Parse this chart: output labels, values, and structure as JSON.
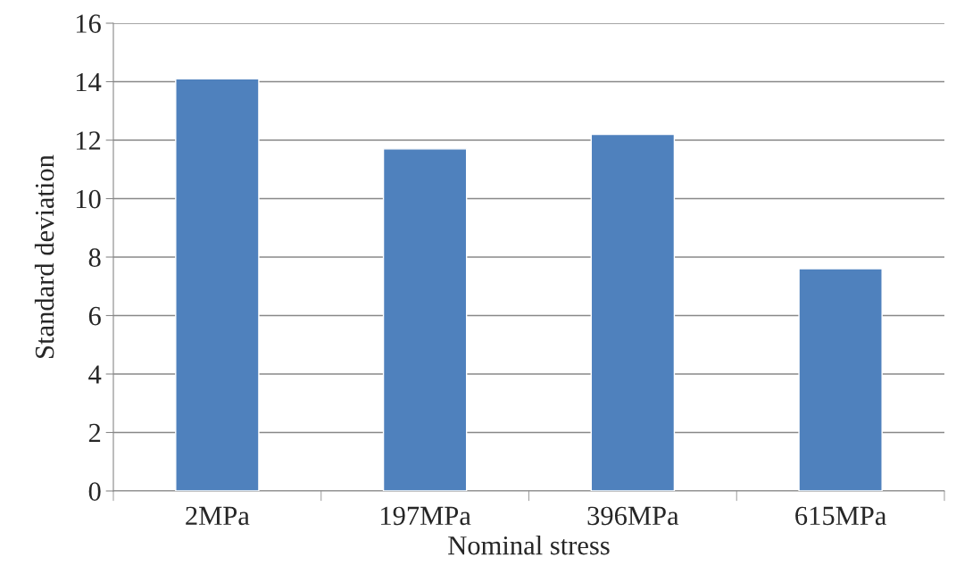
{
  "chart_data": {
    "type": "bar",
    "xlabel": "Nominal stress",
    "ylabel": "Standard deviation",
    "categories": [
      "2MPa",
      "197MPa",
      "396MPa",
      "615MPa"
    ],
    "values": [
      14.1,
      11.7,
      12.2,
      7.6
    ],
    "color": "#4f81bd",
    "ylim": [
      0,
      16
    ],
    "yticks": [
      0,
      2,
      4,
      6,
      8,
      10,
      12,
      14,
      16
    ],
    "grid": "y",
    "legend": false
  }
}
